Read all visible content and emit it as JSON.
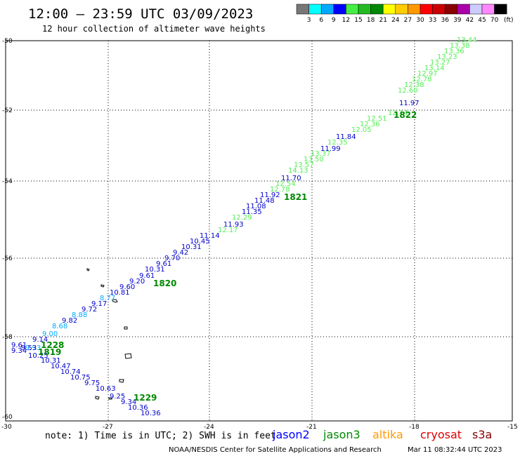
{
  "header": {
    "title": "12:00 — 23:59 UTC 03/09/2023",
    "subtitle": "12 hour collection of altimeter wave heights"
  },
  "color_scale": {
    "swatches": [
      "#777777",
      "#00ffff",
      "#00aaff",
      "#0000ff",
      "#44ee44",
      "#22bb22",
      "#008800",
      "#ffff00",
      "#ffcc00",
      "#ff9900",
      "#ff0000",
      "#cc0000",
      "#880000",
      "#aa00aa",
      "#ccccff",
      "#ff88ff",
      "#000000"
    ],
    "labels": [
      "3",
      "6",
      "9",
      "12",
      "15",
      "18",
      "21",
      "24",
      "27",
      "30",
      "33",
      "36",
      "39",
      "42",
      "45",
      "70"
    ],
    "unit": "(ft)"
  },
  "axes": {
    "lat_labels": [
      "-50",
      "-52",
      "-54",
      "-56",
      "-58",
      "-60"
    ],
    "lon_labels": [
      "-30",
      "-27",
      "-24",
      "-21",
      "-18",
      "-15"
    ]
  },
  "time_labels": [
    "1822",
    "1821",
    "1820",
    "1229",
    "1228",
    "1819"
  ],
  "wave_labels": [
    "13.44",
    "13.38",
    "13.36",
    "13.23",
    "13.27",
    "13.14",
    "12.97",
    "12.78",
    "12.38",
    "12.60",
    "11.97",
    "12.14",
    "12.51",
    "12.36",
    "12.05",
    "11.84",
    "12.35",
    "11.99",
    "13.37",
    "13.50",
    "13.57",
    "14.13",
    "11.70",
    "12.54",
    "12.78",
    "11.92",
    "11.48",
    "11.08",
    "11.35",
    "12.29",
    "11.93",
    "12.17",
    "11.14",
    "10.45",
    "10.31",
    "9.42",
    "9.70",
    "9.61",
    "10.31",
    "9.61",
    "9.20",
    "9.60",
    "10.81",
    "8.77",
    "9.17",
    "9.72",
    "8.88",
    "9.82",
    "8.68",
    "9.00",
    "9.14",
    "9.61",
    "9.93",
    "9.34",
    "9.53",
    "10.25",
    "10.31",
    "10.47",
    "10.74",
    "10.75",
    "9.75",
    "10.63",
    "9.25",
    "9.34",
    "10.36",
    "10.36"
  ],
  "legend": {
    "note": "note:  1) Time is in UTC;  2) SWH is in feet",
    "missions": [
      {
        "name": "jason2",
        "color": "#0000ff"
      },
      {
        "name": "jason3",
        "color": "#008800"
      },
      {
        "name": "altika",
        "color": "#ff9900"
      },
      {
        "name": "cryosat",
        "color": "#dd0000"
      },
      {
        "name": "s3a",
        "color": "#880000"
      }
    ]
  },
  "footer": {
    "credit": "NOAA/NESDIS Center for Satellite Applications and Research",
    "timestamp": "Mar 11 08:32:44 UTC 2023"
  }
}
